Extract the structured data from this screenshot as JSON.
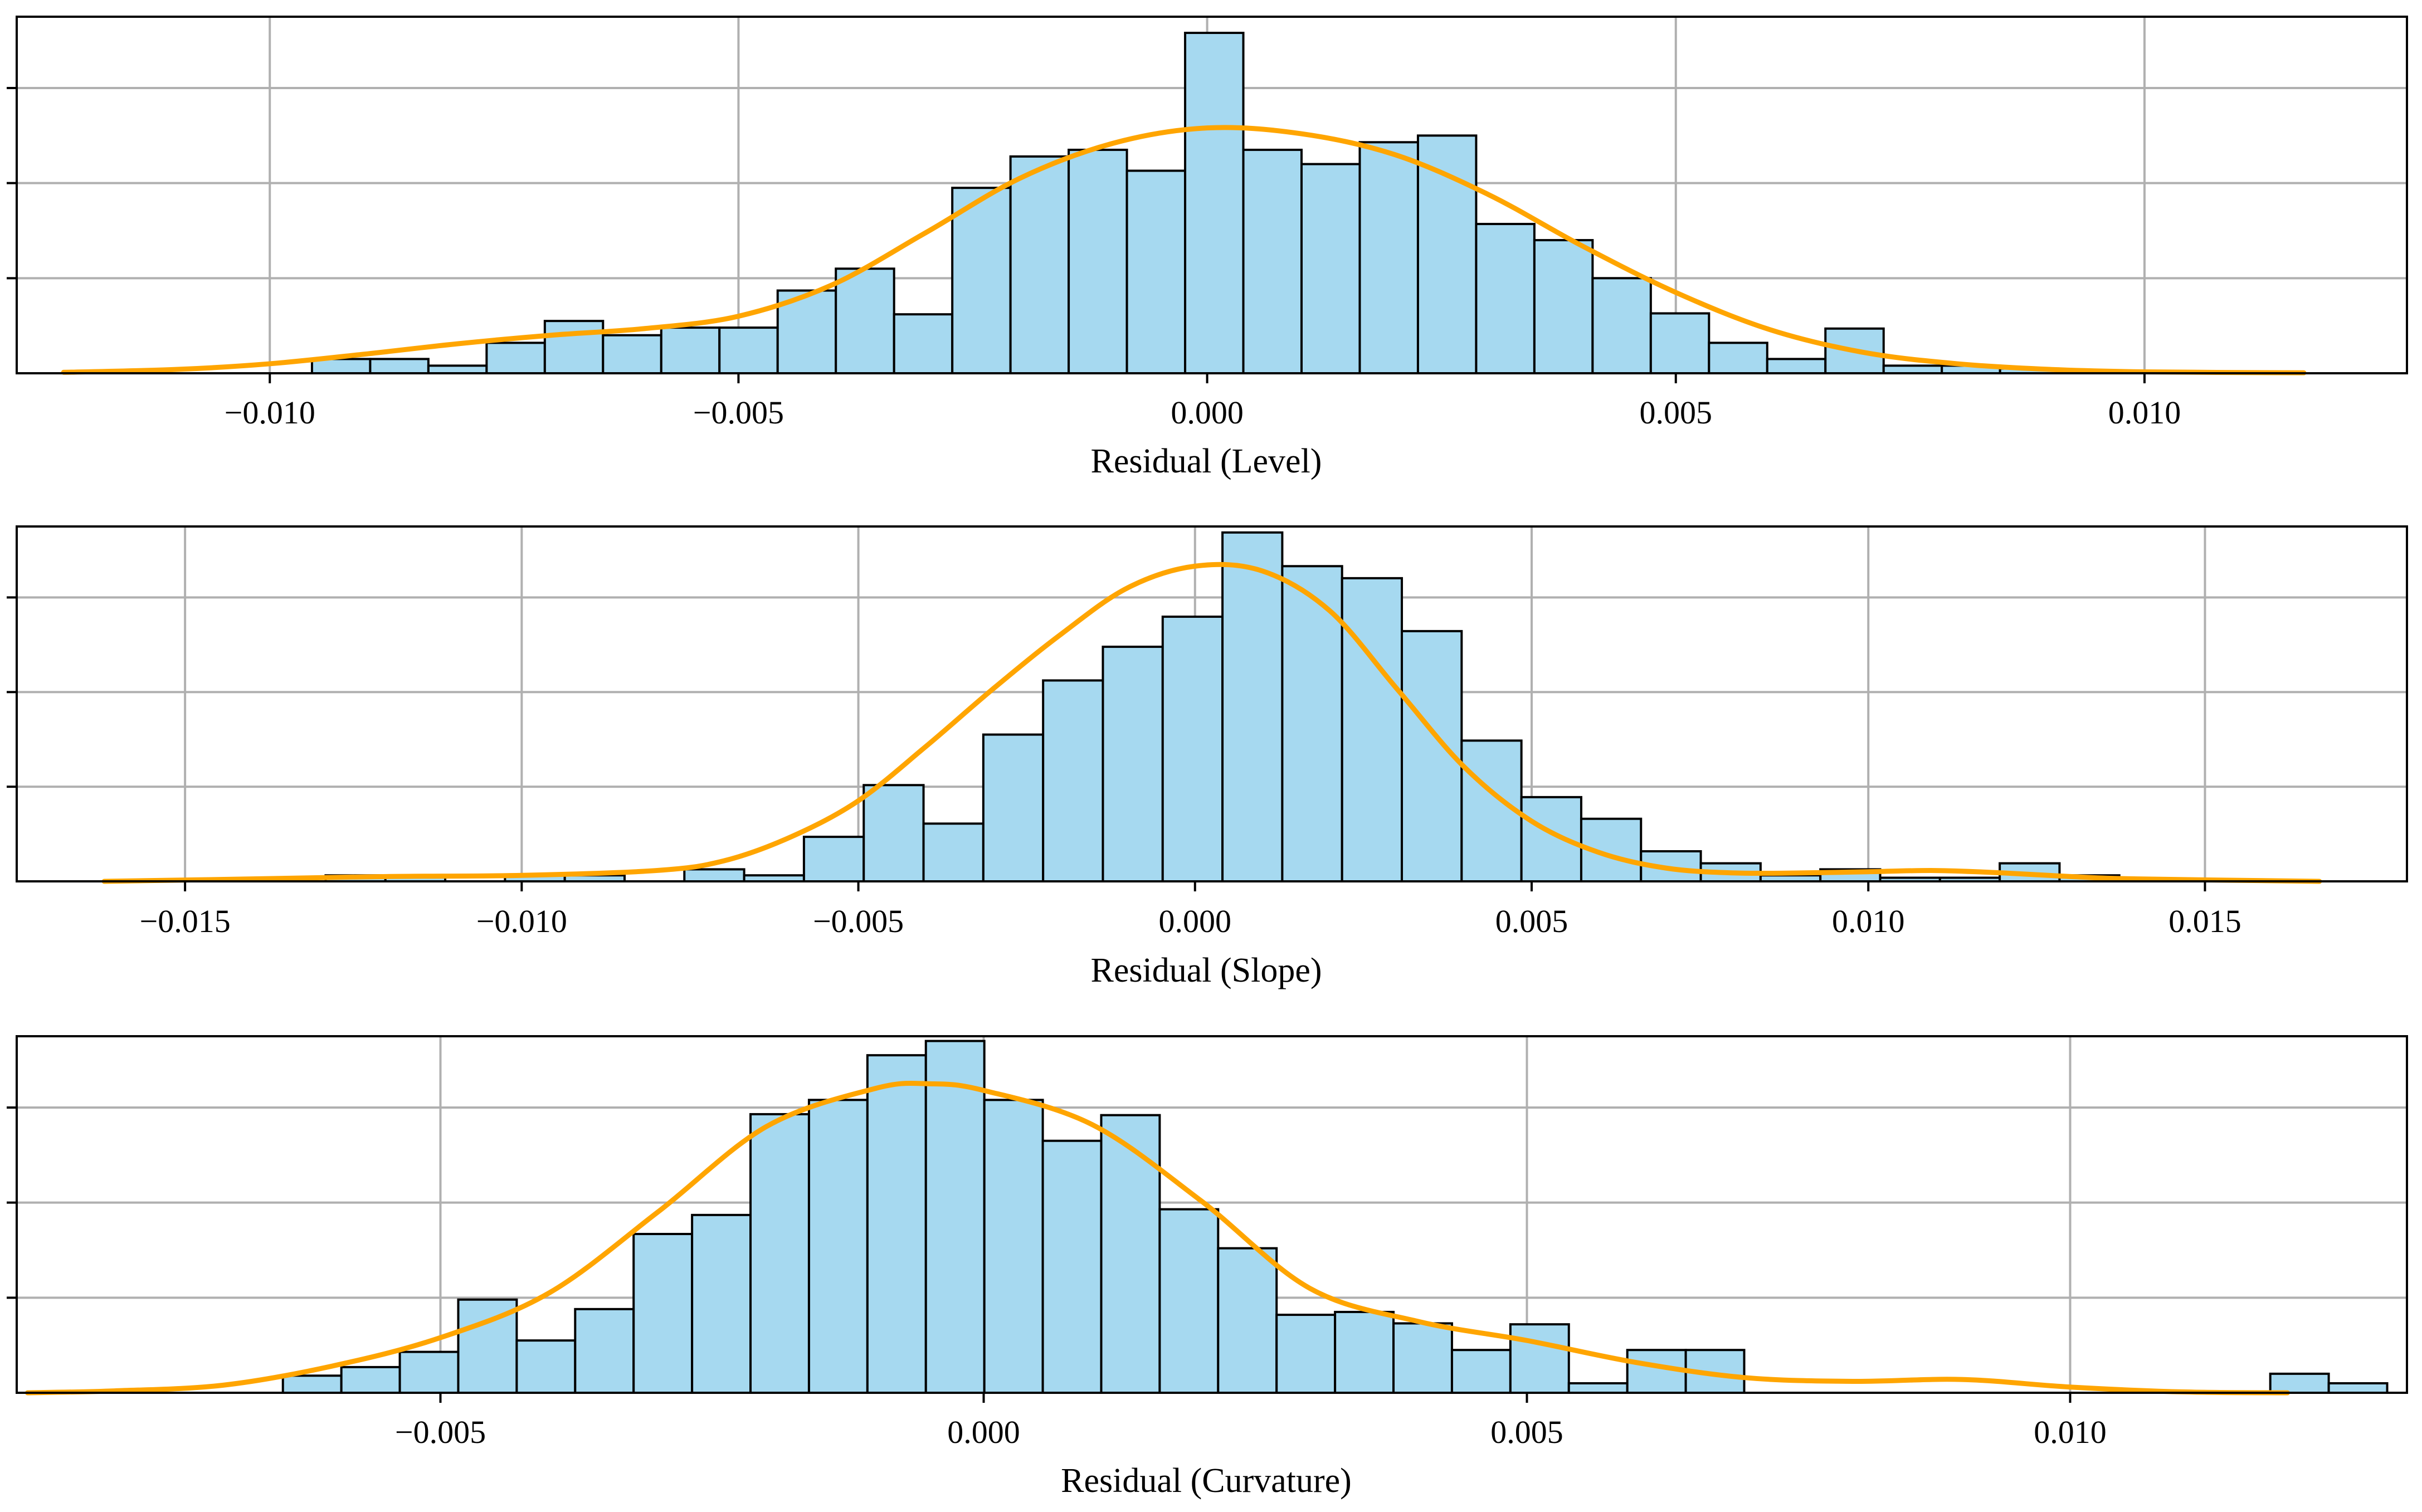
{
  "colors": {
    "bar_fill": "#a6d9f0",
    "bar_edge": "#000000",
    "kde_line": "#ffa500",
    "grid": "#b0b0b0",
    "axes": "#000000",
    "background": "#ffffff"
  },
  "chart_data": [
    {
      "type": "bar",
      "subtype": "histogram-with-kde",
      "xlabel": "Residual (Level)",
      "ylabel": "",
      "xlim": [
        -0.0127,
        0.0128
      ],
      "ylim": [
        0,
        3.75
      ],
      "xticks": [
        -0.01,
        -0.005,
        0.0,
        0.005,
        0.01
      ],
      "xtick_labels": [
        "−0.010",
        "−0.005",
        "0.000",
        "0.005",
        "0.010"
      ],
      "ytick_count": 4,
      "grid": true,
      "bin_start": -0.00955,
      "bin_width": 0.000621,
      "counts": [
        0.15,
        0.15,
        0.08,
        0.32,
        0.55,
        0.4,
        0.48,
        0.48,
        0.87,
        1.1,
        0.62,
        1.95,
        2.28,
        2.35,
        2.13,
        3.58,
        2.35,
        2.2,
        2.43,
        2.5,
        1.57,
        1.4,
        1.0,
        0.63,
        0.32,
        0.15,
        0.47,
        0.08,
        0.08,
        0.05
      ],
      "kde": {
        "x": [
          -0.0122,
          -0.011,
          -0.01,
          -0.009,
          -0.008,
          -0.007,
          -0.006,
          -0.005,
          -0.004,
          -0.003,
          -0.002,
          -0.001,
          0.0,
          0.001,
          0.002,
          0.003,
          0.004,
          0.005,
          0.006,
          0.007,
          0.008,
          0.009,
          0.01,
          0.0117
        ],
        "y": [
          0.01,
          0.04,
          0.1,
          0.2,
          0.31,
          0.4,
          0.47,
          0.6,
          0.93,
          1.48,
          2.05,
          2.42,
          2.58,
          2.52,
          2.3,
          1.88,
          1.34,
          0.85,
          0.46,
          0.22,
          0.1,
          0.04,
          0.015,
          0.005
        ]
      }
    },
    {
      "type": "bar",
      "subtype": "histogram-with-kde",
      "xlabel": "Residual (Slope)",
      "ylabel": "",
      "xlim": [
        -0.0175,
        0.018
      ],
      "ylim": [
        0,
        2.95
      ],
      "xticks": [
        -0.015,
        -0.01,
        -0.005,
        0.0,
        0.005,
        0.01,
        0.015
      ],
      "xtick_labels": [
        "−0.015",
        "−0.010",
        "−0.005",
        "0.000",
        "0.005",
        "0.010",
        "0.015"
      ],
      "ytick_count": 4,
      "grid": true,
      "bin_start": -0.0138,
      "bin_width": 0.000888,
      "counts": [
        0,
        0.05,
        0.05,
        0,
        0.05,
        0.05,
        0,
        0.1,
        0.05,
        0.37,
        0.8,
        0.48,
        1.22,
        1.67,
        1.95,
        2.2,
        2.9,
        2.62,
        2.52,
        2.08,
        1.17,
        0.7,
        0.52,
        0.25,
        0.15,
        0.05,
        0.1,
        0.03,
        0.03,
        0.15,
        0.05
      ],
      "kde": {
        "x": [
          -0.0162,
          -0.014,
          -0.012,
          -0.01,
          -0.008,
          -0.007,
          -0.006,
          -0.005,
          -0.004,
          -0.003,
          -0.002,
          -0.001,
          0.0,
          0.001,
          0.002,
          0.003,
          0.004,
          0.005,
          0.006,
          0.007,
          0.008,
          0.009,
          0.01,
          0.011,
          0.012,
          0.013,
          0.014,
          0.0167
        ],
        "y": [
          0.0,
          0.02,
          0.04,
          0.05,
          0.09,
          0.17,
          0.37,
          0.67,
          1.12,
          1.6,
          2.05,
          2.44,
          2.62,
          2.58,
          2.25,
          1.6,
          0.95,
          0.5,
          0.24,
          0.11,
          0.07,
          0.07,
          0.08,
          0.09,
          0.07,
          0.04,
          0.02,
          0.0
        ]
      }
    },
    {
      "type": "bar",
      "subtype": "histogram-with-kde",
      "xlabel": "Residual (Curvature)",
      "ylabel": "",
      "xlim": [
        -0.0089,
        0.0131
      ],
      "ylim": [
        0,
        3.75
      ],
      "xticks": [
        -0.005,
        0.0,
        0.005,
        0.01
      ],
      "xtick_labels": [
        "−0.005",
        "0.000",
        "0.005",
        "0.010"
      ],
      "ytick_count": 4,
      "grid": true,
      "bin_start": -0.00645,
      "bin_width": 0.000538,
      "counts": [
        0.18,
        0.27,
        0.43,
        0.98,
        0.55,
        0.88,
        1.67,
        1.87,
        2.93,
        3.08,
        3.55,
        3.7,
        3.08,
        2.65,
        2.92,
        1.93,
        1.52,
        0.82,
        0.85,
        0.73,
        0.45,
        0.72,
        0.1,
        0.45,
        0.45,
        0,
        0,
        0,
        0,
        0,
        0,
        0,
        0,
        0,
        0.2,
        0.1
      ],
      "kde": {
        "x": [
          -0.0088,
          -0.008,
          -0.007,
          -0.006,
          -0.005,
          -0.004,
          -0.003,
          -0.002,
          -0.001,
          -0.0005,
          0.0,
          0.001,
          0.002,
          0.003,
          0.004,
          0.005,
          0.006,
          0.007,
          0.008,
          0.009,
          0.01,
          0.011,
          0.012
        ],
        "y": [
          0.0,
          0.02,
          0.08,
          0.28,
          0.58,
          1.05,
          1.9,
          2.8,
          3.2,
          3.25,
          3.18,
          2.82,
          2.02,
          1.1,
          0.75,
          0.55,
          0.32,
          0.16,
          0.12,
          0.14,
          0.06,
          0.01,
          0.0
        ]
      }
    }
  ]
}
